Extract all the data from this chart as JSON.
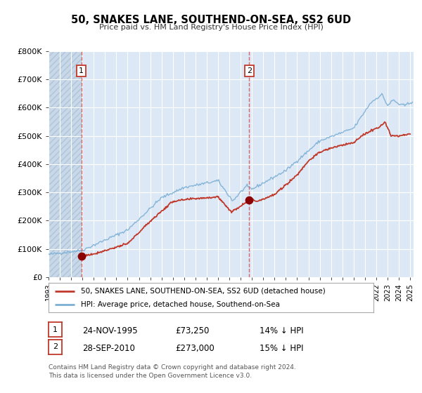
{
  "title": "50, SNAKES LANE, SOUTHEND-ON-SEA, SS2 6UD",
  "subtitle": "Price paid vs. HM Land Registry's House Price Index (HPI)",
  "ylim": [
    0,
    800000
  ],
  "yticks": [
    0,
    100000,
    200000,
    300000,
    400000,
    500000,
    600000,
    700000,
    800000
  ],
  "ytick_labels": [
    "£0",
    "£100K",
    "£200K",
    "£300K",
    "£400K",
    "£500K",
    "£600K",
    "£700K",
    "£800K"
  ],
  "hpi_color": "#7bafd4",
  "price_color": "#c0392b",
  "vline_color": "#e05555",
  "marker_color": "#8b0000",
  "plot_bg_color": "#dce8f5",
  "hatch_bg_color": "#c8d8e8",
  "grid_color": "#ffffff",
  "sale1_date": 1995.9,
  "sale1_price": 73250,
  "sale1_label": "1",
  "sale2_date": 2010.75,
  "sale2_price": 273000,
  "sale2_label": "2",
  "legend_line1": "50, SNAKES LANE, SOUTHEND-ON-SEA, SS2 6UD (detached house)",
  "legend_line2": "HPI: Average price, detached house, Southend-on-Sea",
  "table_row1": [
    "1",
    "24-NOV-1995",
    "£73,250",
    "14% ↓ HPI"
  ],
  "table_row2": [
    "2",
    "28-SEP-2010",
    "£273,000",
    "15% ↓ HPI"
  ],
  "footer1": "Contains HM Land Registry data © Crown copyright and database right 2024.",
  "footer2": "This data is licensed under the Open Government Licence v3.0.",
  "xmin": 1993,
  "xmax": 2025.3
}
